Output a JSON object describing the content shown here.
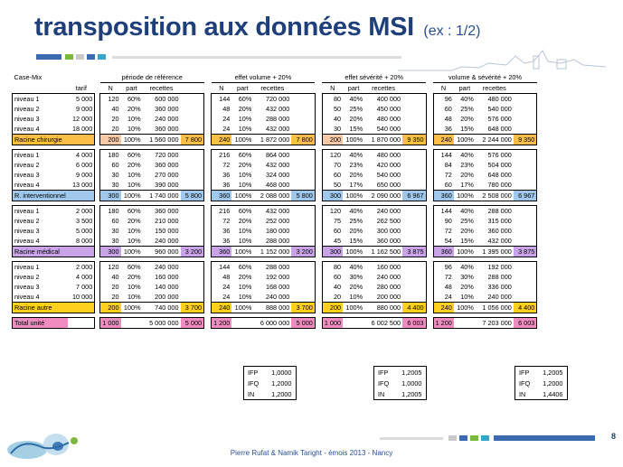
{
  "title": {
    "main": "transposition aux données MSI",
    "sub": "(ex : 1/2)"
  },
  "footer": "Pierre Rufat & Namik Taright - émois 2013 - Nancy",
  "page_number": "8",
  "colors": {
    "title": "#1f3f7a",
    "chir": "#fbbf48",
    "interv": "#9fc8ec",
    "medical": "#c8a3e8",
    "autre": "#ffd01e",
    "total": "#f08cc0",
    "tarif_chir": "#f7c9a6",
    "deco_blue": "#3a6ab0",
    "deco_green": "#7ab83e",
    "deco_grey": "#c9c9c9"
  },
  "headers": {
    "casemix": "Case-Mix",
    "tarif": "tarif",
    "n": "N",
    "part": "part",
    "recettes": "recettes",
    "periods": [
      "période de référence",
      "effet volume + 20%",
      "effet sévérité + 20%",
      "volume & sévérité + 20%"
    ]
  },
  "groups": [
    {
      "type": "chir",
      "rows": [
        {
          "label": "niveau 1",
          "tarif": "5 000",
          "cells": [
            [
              "120",
              "60%",
              "600 000"
            ],
            [
              "144",
              "60%",
              "720 000"
            ],
            [
              "80",
              "40%",
              "400 000"
            ],
            [
              "96",
              "40%",
              "480 000"
            ]
          ]
        },
        {
          "label": "niveau 2",
          "tarif": "9 000",
          "cells": [
            [
              "40",
              "20%",
              "360 000"
            ],
            [
              "48",
              "20%",
              "432 000"
            ],
            [
              "50",
              "25%",
              "450 000"
            ],
            [
              "60",
              "25%",
              "540 000"
            ]
          ]
        },
        {
          "label": "niveau 3",
          "tarif": "12 000",
          "cells": [
            [
              "20",
              "10%",
              "240 000"
            ],
            [
              "24",
              "10%",
              "288 000"
            ],
            [
              "40",
              "20%",
              "480 000"
            ],
            [
              "48",
              "20%",
              "576 000"
            ]
          ]
        },
        {
          "label": "niveau 4",
          "tarif": "18 000",
          "cells": [
            [
              "20",
              "10%",
              "360 000"
            ],
            [
              "24",
              "10%",
              "432 000"
            ],
            [
              "30",
              "15%",
              "540 000"
            ],
            [
              "36",
              "15%",
              "648 000"
            ]
          ]
        }
      ],
      "total": {
        "label": "Racine chirurgie",
        "cells": [
          [
            "200",
            "100%",
            "1 560 000",
            "7 800"
          ],
          [
            "240",
            "100%",
            "1 872 000",
            "7 800"
          ],
          [
            "200",
            "100%",
            "1 870 000",
            "9 350"
          ],
          [
            "240",
            "100%",
            "2 244 000",
            "9 350"
          ]
        ]
      }
    },
    {
      "type": "interv",
      "rows": [
        {
          "label": "niveau 1",
          "tarif": "4 000",
          "cells": [
            [
              "180",
              "60%",
              "720 000"
            ],
            [
              "216",
              "60%",
              "864 000"
            ],
            [
              "120",
              "40%",
              "480 000"
            ],
            [
              "144",
              "40%",
              "576 000"
            ]
          ]
        },
        {
          "label": "niveau 2",
          "tarif": "6 000",
          "cells": [
            [
              "60",
              "20%",
              "360 000"
            ],
            [
              "72",
              "20%",
              "432 000"
            ],
            [
              "70",
              "23%",
              "420 000"
            ],
            [
              "84",
              "23%",
              "504 000"
            ]
          ]
        },
        {
          "label": "niveau 3",
          "tarif": "9 000",
          "cells": [
            [
              "30",
              "10%",
              "270 000"
            ],
            [
              "36",
              "10%",
              "324 000"
            ],
            [
              "60",
              "20%",
              "540 000"
            ],
            [
              "72",
              "20%",
              "648 000"
            ]
          ]
        },
        {
          "label": "niveau 4",
          "tarif": "13 000",
          "cells": [
            [
              "30",
              "10%",
              "390 000"
            ],
            [
              "36",
              "10%",
              "468 000"
            ],
            [
              "50",
              "17%",
              "650 000"
            ],
            [
              "60",
              "17%",
              "780 000"
            ]
          ]
        }
      ],
      "total": {
        "label": "R. interventionnel",
        "cells": [
          [
            "300",
            "100%",
            "1 740 000",
            "5 800"
          ],
          [
            "360",
            "100%",
            "2 088 000",
            "5 800"
          ],
          [
            "300",
            "100%",
            "2 090 000",
            "6 967"
          ],
          [
            "360",
            "100%",
            "2 508 000",
            "6 967"
          ]
        ]
      }
    },
    {
      "type": "medical",
      "rows": [
        {
          "label": "niveau 1",
          "tarif": "2 000",
          "cells": [
            [
              "180",
              "60%",
              "360 000"
            ],
            [
              "216",
              "60%",
              "432 000"
            ],
            [
              "120",
              "40%",
              "240 000"
            ],
            [
              "144",
              "40%",
              "288 000"
            ]
          ]
        },
        {
          "label": "niveau 2",
          "tarif": "3 500",
          "cells": [
            [
              "60",
              "20%",
              "210 000"
            ],
            [
              "72",
              "20%",
              "252 000"
            ],
            [
              "75",
              "25%",
              "262 500"
            ],
            [
              "90",
              "25%",
              "315 000"
            ]
          ]
        },
        {
          "label": "niveau 3",
          "tarif": "5 000",
          "cells": [
            [
              "30",
              "10%",
              "150 000"
            ],
            [
              "36",
              "10%",
              "180 000"
            ],
            [
              "60",
              "20%",
              "300 000"
            ],
            [
              "72",
              "20%",
              "360 000"
            ]
          ]
        },
        {
          "label": "niveau 4",
          "tarif": "8 000",
          "cells": [
            [
              "30",
              "10%",
              "240 000"
            ],
            [
              "36",
              "10%",
              "288 000"
            ],
            [
              "45",
              "15%",
              "360 000"
            ],
            [
              "54",
              "15%",
              "432 000"
            ]
          ]
        }
      ],
      "total": {
        "label": "Racine médical",
        "cells": [
          [
            "300",
            "100%",
            "960 000",
            "3 200"
          ],
          [
            "360",
            "100%",
            "1 152 000",
            "3 200"
          ],
          [
            "300",
            "100%",
            "1 162 500",
            "3 875"
          ],
          [
            "360",
            "100%",
            "1 395 000",
            "3 875"
          ]
        ]
      }
    },
    {
      "type": "autre",
      "rows": [
        {
          "label": "niveau 1",
          "tarif": "2 000",
          "cells": [
            [
              "120",
              "60%",
              "240 000"
            ],
            [
              "144",
              "60%",
              "288 000"
            ],
            [
              "80",
              "40%",
              "160 000"
            ],
            [
              "96",
              "40%",
              "192 000"
            ]
          ]
        },
        {
          "label": "niveau 2",
          "tarif": "4 000",
          "cells": [
            [
              "40",
              "20%",
              "160 000"
            ],
            [
              "48",
              "20%",
              "192 000"
            ],
            [
              "60",
              "30%",
              "240 000"
            ],
            [
              "72",
              "30%",
              "288 000"
            ]
          ]
        },
        {
          "label": "niveau 3",
          "tarif": "7 000",
          "cells": [
            [
              "20",
              "10%",
              "140 000"
            ],
            [
              "24",
              "10%",
              "168 000"
            ],
            [
              "40",
              "20%",
              "280 000"
            ],
            [
              "48",
              "20%",
              "336 000"
            ]
          ]
        },
        {
          "label": "niveau 4",
          "tarif": "10 000",
          "cells": [
            [
              "20",
              "10%",
              "200 000"
            ],
            [
              "24",
              "10%",
              "240 000"
            ],
            [
              "20",
              "10%",
              "200 000"
            ],
            [
              "24",
              "10%",
              "240 000"
            ]
          ]
        }
      ],
      "total": {
        "label": "Racine autre",
        "cells": [
          [
            "200",
            "100%",
            "740 000",
            "3 700"
          ],
          [
            "240",
            "100%",
            "888 000",
            "3 700"
          ],
          [
            "200",
            "100%",
            "880 000",
            "4 400"
          ],
          [
            "240",
            "100%",
            "1 056 000",
            "4 400"
          ]
        ]
      }
    }
  ],
  "grand_total": {
    "label": "Total unité",
    "cells": [
      [
        "1 000",
        "",
        "5 000 000",
        "5 000"
      ],
      [
        "1 200",
        "",
        "6 000 000",
        "5 000"
      ],
      [
        "1 000",
        "",
        "6 002 500",
        "6 003"
      ],
      [
        "1 200",
        "",
        "7 203 000",
        "6 003"
      ]
    ]
  },
  "indices": [
    {
      "rows": [
        [
          "IFP",
          "1,0000"
        ],
        [
          "IFQ",
          "1,2000"
        ],
        [
          "IN",
          "1,2000"
        ]
      ]
    },
    {
      "rows": [
        [
          "IFP",
          "1,2005"
        ],
        [
          "IFQ",
          "1,0000"
        ],
        [
          "IN",
          "1,2005"
        ]
      ]
    },
    {
      "rows": [
        [
          "IFP",
          "1,2005"
        ],
        [
          "IFQ",
          "1,2000"
        ],
        [
          "IN",
          "1,4406"
        ]
      ]
    }
  ]
}
